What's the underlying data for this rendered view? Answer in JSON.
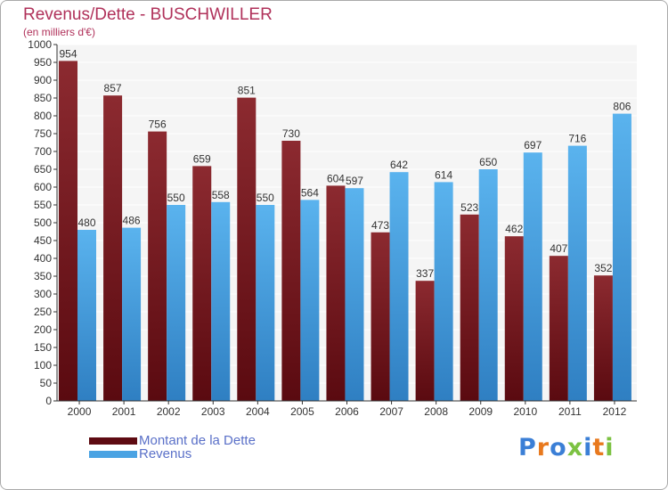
{
  "chart_data": {
    "type": "bar",
    "title": "Revenus/Dette - BUSCHWILLER",
    "subtitle": "(en milliers d'€)",
    "categories": [
      "2000",
      "2001",
      "2002",
      "2003",
      "2004",
      "2005",
      "2006",
      "2007",
      "2008",
      "2009",
      "2010",
      "2011",
      "2012"
    ],
    "series": [
      {
        "name": "Montant de la Dette",
        "color": "#7a1c22",
        "values": [
          954,
          857,
          756,
          659,
          851,
          730,
          604,
          473,
          337,
          523,
          462,
          407,
          352
        ]
      },
      {
        "name": "Revenus",
        "color": "#4aa3e3",
        "values": [
          480,
          486,
          550,
          558,
          550,
          564,
          597,
          642,
          614,
          650,
          697,
          716,
          806
        ]
      }
    ],
    "ylim": [
      0,
      1000
    ],
    "ytick_step": 50,
    "grid": true,
    "legend": "bottom-left"
  },
  "logo": {
    "text": "Proxiti",
    "colors": [
      "#3b7fd6",
      "#e8791e",
      "#3b7fd6",
      "#7cc242",
      "#3b7fd6",
      "#e8791e",
      "#7cc242"
    ]
  }
}
